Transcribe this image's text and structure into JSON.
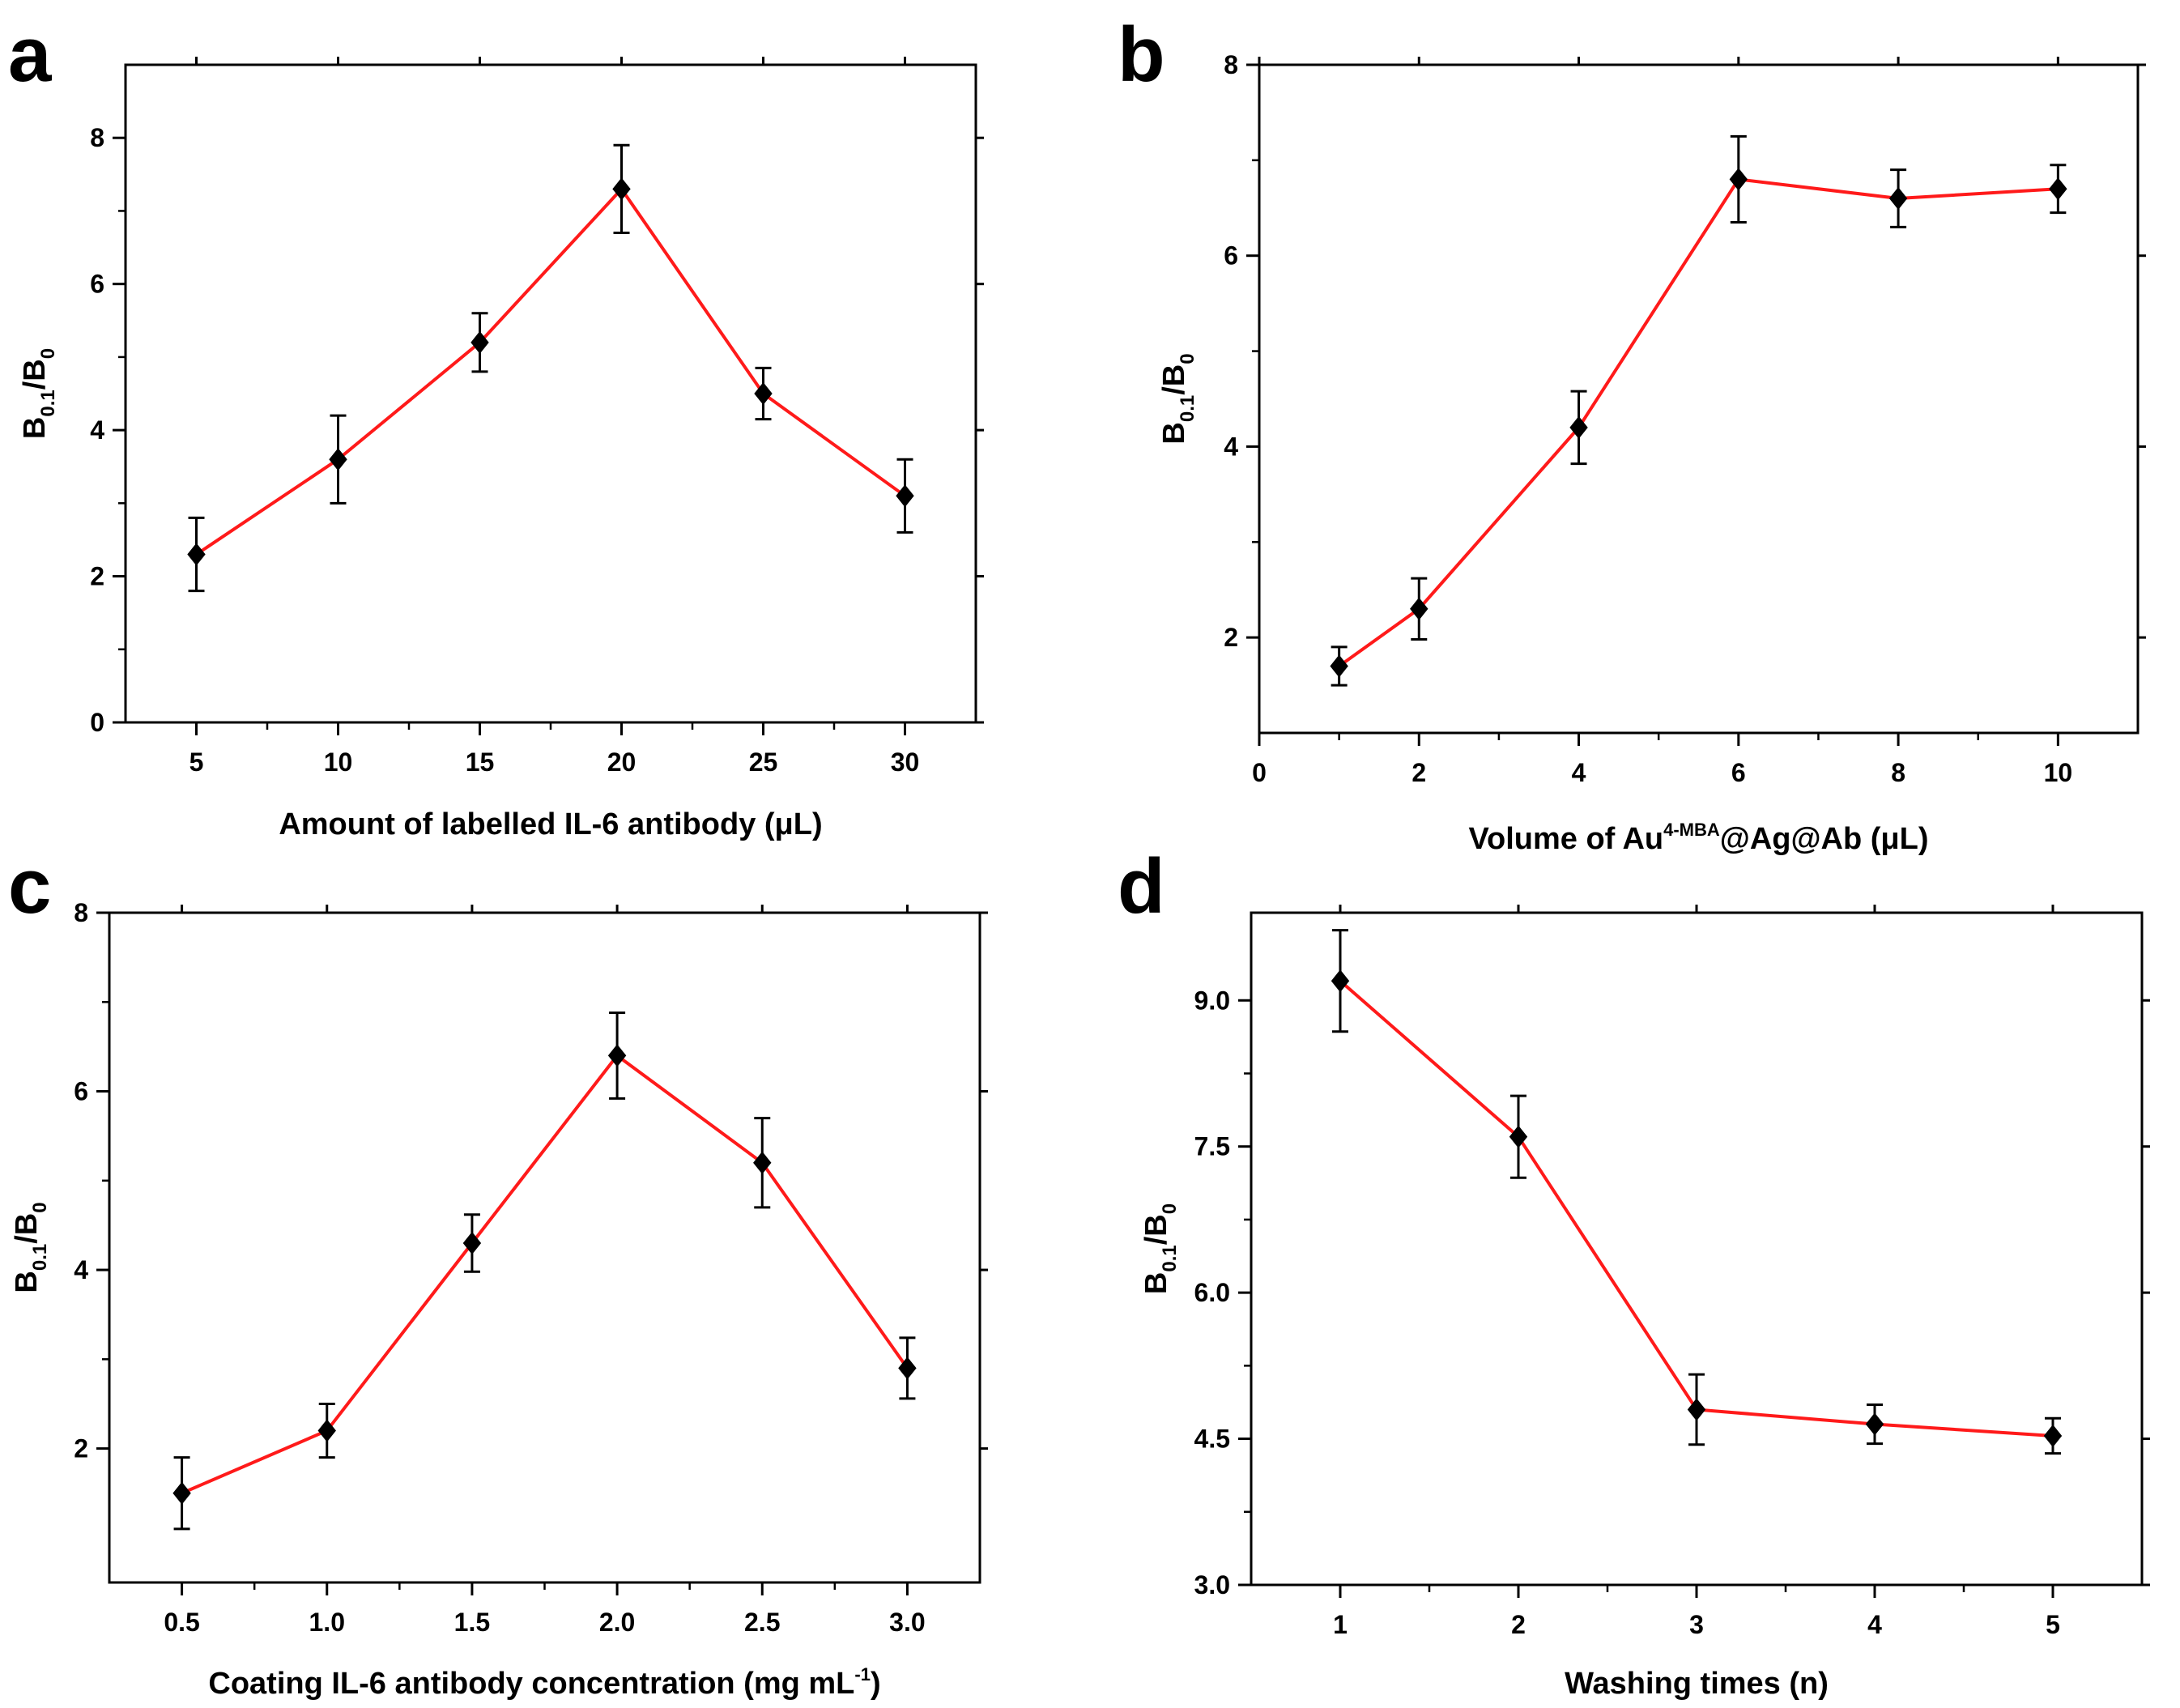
{
  "colors": {
    "line": "#ff1a1a",
    "marker": "#000000",
    "axis": "#000000"
  },
  "chart_data": [
    {
      "type": "line",
      "panel_label": "a",
      "title": "",
      "xlabel": "Amount of labelled IL-6 antibody (μL)",
      "ylabel": {
        "main": "B",
        "sub1": "0.1",
        "mid": "/B",
        "sub2": "0"
      },
      "x": [
        5,
        10,
        15,
        20,
        25,
        30
      ],
      "y": [
        2.3,
        3.6,
        5.2,
        7.3,
        4.5,
        3.1
      ],
      "yerr": [
        0.5,
        0.6,
        0.4,
        0.6,
        0.35,
        0.5
      ],
      "xlim": [
        2.5,
        32.5
      ],
      "ylim": [
        0,
        9
      ],
      "xticks": [
        "5",
        "10",
        "15",
        "20",
        "25",
        "30"
      ],
      "xtick_values": [
        5,
        10,
        15,
        20,
        25,
        30
      ],
      "yticks": [
        "0",
        "2",
        "4",
        "6",
        "8"
      ],
      "ytick_values": [
        0,
        2,
        4,
        6,
        8
      ]
    },
    {
      "type": "line",
      "panel_label": "b",
      "title": "",
      "xlabel": {
        "pre": "Volume of Au",
        "sup": "4-MBA",
        "post": "@Ag@Ab (μL)"
      },
      "ylabel": {
        "main": "B",
        "sub1": "0.1",
        "mid": "/B",
        "sub2": "0"
      },
      "x": [
        1,
        2,
        4,
        6,
        8,
        10
      ],
      "y": [
        1.7,
        2.3,
        4.2,
        6.8,
        6.6,
        6.7
      ],
      "yerr": [
        0.2,
        0.32,
        0.38,
        0.45,
        0.3,
        0.25
      ],
      "xlim": [
        0,
        11
      ],
      "ylim": [
        1,
        8
      ],
      "xticks": [
        "0",
        "2",
        "4",
        "6",
        "8",
        "10"
      ],
      "xtick_values": [
        0,
        2,
        4,
        6,
        8,
        10
      ],
      "yticks": [
        "2",
        "4",
        "6",
        "8"
      ],
      "ytick_values": [
        2,
        4,
        6,
        8
      ]
    },
    {
      "type": "line",
      "panel_label": "c",
      "title": "",
      "xlabel": {
        "pre": "Coating IL-6 antibody concentration (mg mL",
        "sup": "-1",
        "post": ")"
      },
      "ylabel": {
        "main": "B",
        "sub1": "0.1",
        "mid": "/B",
        "sub2": "0"
      },
      "x": [
        0.5,
        1.0,
        1.5,
        2.0,
        2.5,
        3.0
      ],
      "y": [
        1.5,
        2.2,
        4.3,
        6.4,
        5.2,
        2.9
      ],
      "yerr": [
        0.4,
        0.3,
        0.32,
        0.48,
        0.5,
        0.34
      ],
      "xlim": [
        0.25,
        3.25
      ],
      "ylim": [
        0.5,
        8
      ],
      "xticks": [
        "0.5",
        "1.0",
        "1.5",
        "2.0",
        "2.5",
        "3.0"
      ],
      "xtick_values": [
        0.5,
        1.0,
        1.5,
        2.0,
        2.5,
        3.0
      ],
      "yticks": [
        "2",
        "4",
        "6",
        "8"
      ],
      "ytick_values": [
        2,
        4,
        6,
        8
      ]
    },
    {
      "type": "line",
      "panel_label": "d",
      "title": "",
      "xlabel": "Washing times (n)",
      "ylabel": {
        "main": "B",
        "sub1": "0.1",
        "mid": "/B",
        "sub2": "0"
      },
      "x": [
        1,
        2,
        3,
        4,
        5
      ],
      "y": [
        9.2,
        7.6,
        4.8,
        4.65,
        4.53
      ],
      "yerr": [
        0.52,
        0.42,
        0.36,
        0.2,
        0.18
      ],
      "xlim": [
        0.5,
        5.5
      ],
      "ylim": [
        3.0,
        9.9
      ],
      "xticks": [
        "1",
        "2",
        "3",
        "4",
        "5"
      ],
      "xtick_values": [
        1,
        2,
        3,
        4,
        5
      ],
      "yticks": [
        "3.0",
        "4.5",
        "6.0",
        "7.5",
        "9.0"
      ],
      "ytick_values": [
        3.0,
        4.5,
        6.0,
        7.5,
        9.0
      ]
    }
  ]
}
